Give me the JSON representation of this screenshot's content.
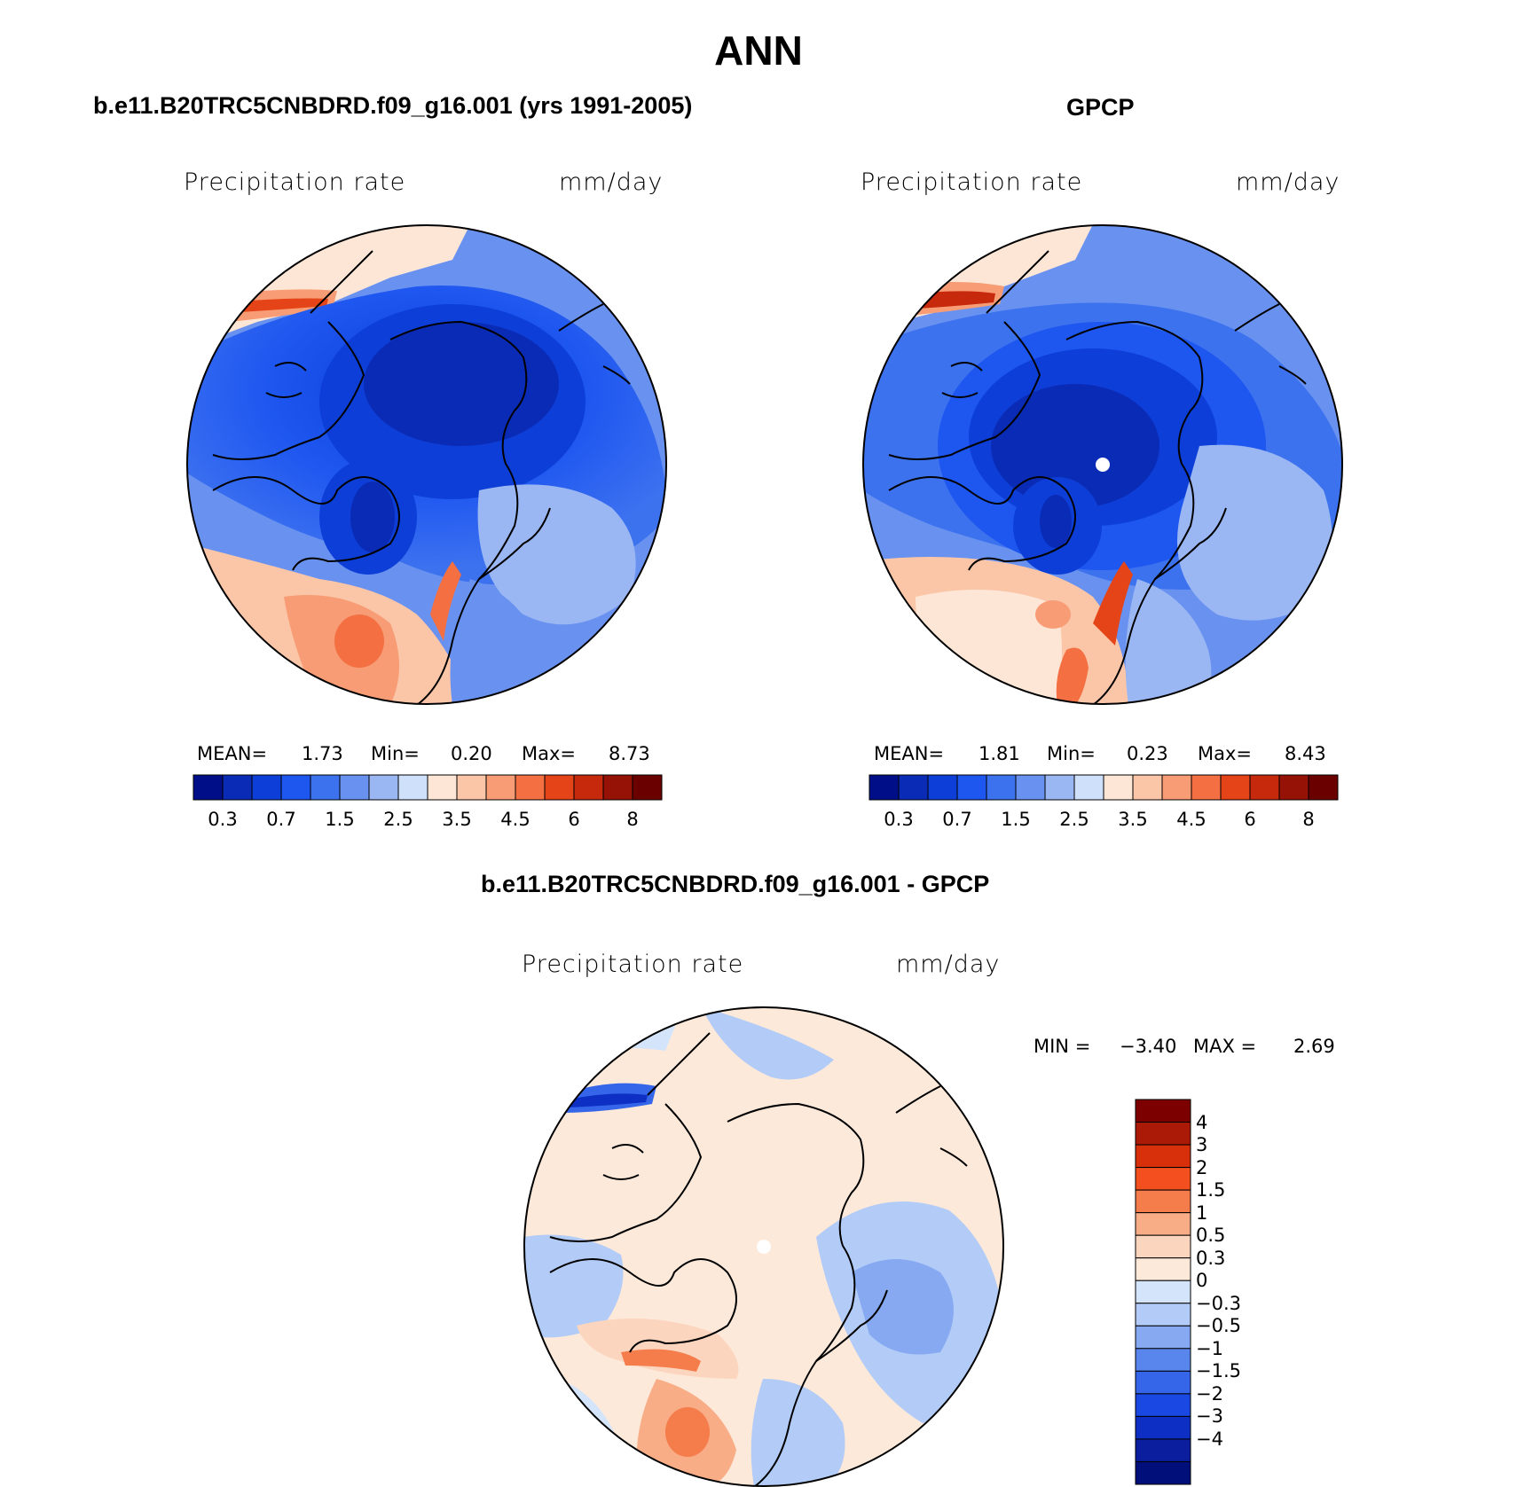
{
  "title": "ANN",
  "units_left": "Precipitation  rate",
  "units_right": "mm/day",
  "panels": [
    {
      "id": "model",
      "title": "b.e11.B20TRC5CNBDRD.f09_g16.001 (yrs 1991-2005)",
      "variable": "Precipitation  rate",
      "units": "mm/day",
      "stats": {
        "mean_label": "MEAN=",
        "mean": "1.73",
        "min_label": "Min=",
        "min": "0.20",
        "max_label": "Max=",
        "max": "8.73"
      }
    },
    {
      "id": "obs",
      "title": "GPCP",
      "variable": "Precipitation  rate",
      "units": "mm/day",
      "stats": {
        "mean_label": "MEAN=",
        "mean": "1.81",
        "min_label": "Min=",
        "min": "0.23",
        "max_label": "Max=",
        "max": "8.43"
      }
    },
    {
      "id": "diff",
      "title": "b.e11.B20TRC5CNBDRD.f09_g16.001 - GPCP",
      "variable": "Precipitation  rate",
      "units": "mm/day",
      "stats": {
        "min_label": "MIN =",
        "min": "−3.40",
        "max_label": "MAX =",
        "max": "2.69"
      }
    }
  ],
  "colorbar_horizontal": {
    "colors": [
      "#000f87",
      "#0a2bb5",
      "#0d3fd8",
      "#1e56f0",
      "#3d72ef",
      "#6992f0",
      "#9ab7f3",
      "#cfe1fa",
      "#fde6d6",
      "#fbc5a7",
      "#f79c75",
      "#f46f42",
      "#e44417",
      "#c6290b",
      "#961206",
      "#6a0000"
    ],
    "tick_labels": [
      "0.3",
      "0.7",
      "1.5",
      "2.5",
      "3.5",
      "4.5",
      "6",
      "8"
    ]
  },
  "colorbar_vertical": {
    "colors": [
      "#7d0000",
      "#ab1a07",
      "#d9300c",
      "#f4501f",
      "#f57c4b",
      "#f8ad87",
      "#fcd5be",
      "#fde9da",
      "#d4e5fb",
      "#b2ccf7",
      "#86a9f1",
      "#5886ec",
      "#3566ea",
      "#1a48e3",
      "#0d2fc4",
      "#0a1e9e",
      "#000f7a"
    ],
    "tick_labels": [
      "4",
      "3",
      "2",
      "1.5",
      "1",
      "0.5",
      "0.3",
      "0",
      "−0.3",
      "−0.5",
      "−1",
      "−1.5",
      "−2",
      "−3",
      "−4"
    ]
  }
}
